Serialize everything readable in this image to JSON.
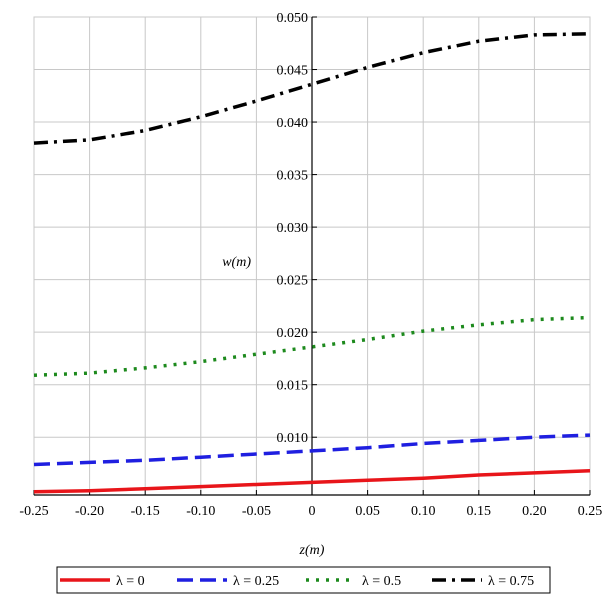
{
  "chart_data": {
    "type": "line",
    "title": "",
    "xlabel": "z(m)",
    "ylabel": "w(m)",
    "xlim": [
      -0.25,
      0.25
    ],
    "ylim": [
      0.0045,
      0.05
    ],
    "grid": true,
    "legend_position": "bottom",
    "xticks": [
      -0.25,
      -0.2,
      -0.15,
      -0.1,
      -0.05,
      0,
      0.05,
      0.1,
      0.15,
      0.2,
      0.25
    ],
    "xtick_labels": [
      "-0.25",
      "-0.20",
      "-0.15",
      "-0.10",
      "-0.05",
      "0",
      "0.05",
      "0.10",
      "0.15",
      "0.20",
      "0.25"
    ],
    "yticks": [
      0.01,
      0.015,
      0.02,
      0.025,
      0.03,
      0.035,
      0.04,
      0.045,
      0.05
    ],
    "ytick_labels": [
      "0.010",
      "0.015",
      "0.020",
      "0.025",
      "0.030",
      "0.035",
      "0.040",
      "0.045",
      "0.050"
    ],
    "x": [
      -0.25,
      -0.2,
      -0.15,
      -0.1,
      -0.05,
      0,
      0.05,
      0.1,
      0.15,
      0.2,
      0.25
    ],
    "series": [
      {
        "name": "λ = 0",
        "color": "#e8151a",
        "dash": "solid",
        "values": [
          0.0048,
          0.0049,
          0.0051,
          0.0053,
          0.0055,
          0.0057,
          0.0059,
          0.0061,
          0.0064,
          0.0066,
          0.0068
        ]
      },
      {
        "name": "λ = 0.25",
        "color": "#1f1fe0",
        "dash": "dash",
        "values": [
          0.0074,
          0.0076,
          0.0078,
          0.0081,
          0.0084,
          0.0087,
          0.009,
          0.0094,
          0.0097,
          0.01,
          0.0102
        ]
      },
      {
        "name": "λ = 0.5",
        "color": "#1d8a1d",
        "dash": "dot",
        "values": [
          0.0159,
          0.0161,
          0.0166,
          0.0172,
          0.0179,
          0.0186,
          0.0193,
          0.0201,
          0.0207,
          0.0212,
          0.0214
        ]
      },
      {
        "name": "λ = 0.75",
        "color": "#000000",
        "dash": "dashdot",
        "values": [
          0.038,
          0.0383,
          0.0392,
          0.0405,
          0.042,
          0.0436,
          0.0452,
          0.0466,
          0.0477,
          0.0483,
          0.0484
        ]
      }
    ]
  }
}
